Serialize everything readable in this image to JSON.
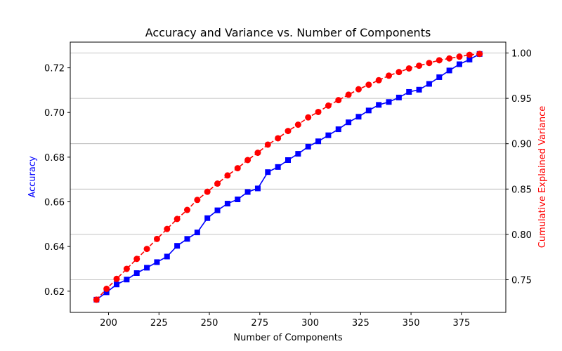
{
  "chart_data": {
    "type": "line",
    "title": "Accuracy and Variance vs. Number of Components",
    "xlabel": "Number of Components",
    "x": [
      194,
      199,
      204,
      209,
      214,
      219,
      224,
      229,
      234,
      239,
      244,
      249,
      254,
      259,
      264,
      269,
      274,
      279,
      284,
      289,
      294,
      299,
      304,
      309,
      314,
      319,
      324,
      329,
      334,
      339,
      344,
      349,
      354,
      359,
      364,
      369,
      374,
      379,
      384
    ],
    "xlim": [
      181,
      397
    ],
    "xticks": [
      200,
      225,
      250,
      275,
      300,
      325,
      350,
      375
    ],
    "series": [
      {
        "name": "Accuracy",
        "axis": "left",
        "color": "#0000ff",
        "marker": "square",
        "line_style": "solid",
        "values": [
          0.6162,
          0.6195,
          0.623,
          0.6252,
          0.6281,
          0.6305,
          0.633,
          0.6355,
          0.6403,
          0.6434,
          0.6463,
          0.6527,
          0.6562,
          0.6592,
          0.6611,
          0.6644,
          0.666,
          0.6733,
          0.6756,
          0.6787,
          0.6815,
          0.6847,
          0.6871,
          0.6898,
          0.6925,
          0.6956,
          0.6981,
          0.7009,
          0.7034,
          0.7047,
          0.7067,
          0.7092,
          0.7102,
          0.7128,
          0.7158,
          0.7188,
          0.7216,
          0.7237,
          0.7262
        ]
      },
      {
        "name": "Cumulative Explained Variance",
        "axis": "right",
        "color": "#ff0000",
        "marker": "circle",
        "line_style": "dashed",
        "values": [
          0.728,
          0.74,
          0.751,
          0.762,
          0.773,
          0.784,
          0.795,
          0.806,
          0.817,
          0.827,
          0.838,
          0.847,
          0.856,
          0.865,
          0.873,
          0.882,
          0.89,
          0.899,
          0.906,
          0.914,
          0.921,
          0.929,
          0.935,
          0.942,
          0.948,
          0.954,
          0.96,
          0.965,
          0.97,
          0.975,
          0.979,
          0.983,
          0.986,
          0.989,
          0.992,
          0.994,
          0.996,
          0.998,
          0.999
        ]
      }
    ],
    "y_left": {
      "label": "Accuracy",
      "color": "#0000ff",
      "lim": [
        0.6105,
        0.7315
      ],
      "ticks": [
        0.62,
        0.64,
        0.66,
        0.68,
        0.7,
        0.72
      ],
      "tick_labels": [
        "0.62",
        "0.64",
        "0.66",
        "0.68",
        "0.70",
        "0.72"
      ]
    },
    "y_right": {
      "label": "Cumulative Explained Variance",
      "color": "#ff0000",
      "lim": [
        0.714,
        1.012
      ],
      "ticks": [
        0.75,
        0.8,
        0.85,
        0.9,
        0.95,
        1.0
      ],
      "tick_labels": [
        "0.75",
        "0.80",
        "0.85",
        "0.90",
        "0.95",
        "1.00"
      ]
    },
    "grid": "horizontal lines at right-axis ticks",
    "legend": "none"
  }
}
